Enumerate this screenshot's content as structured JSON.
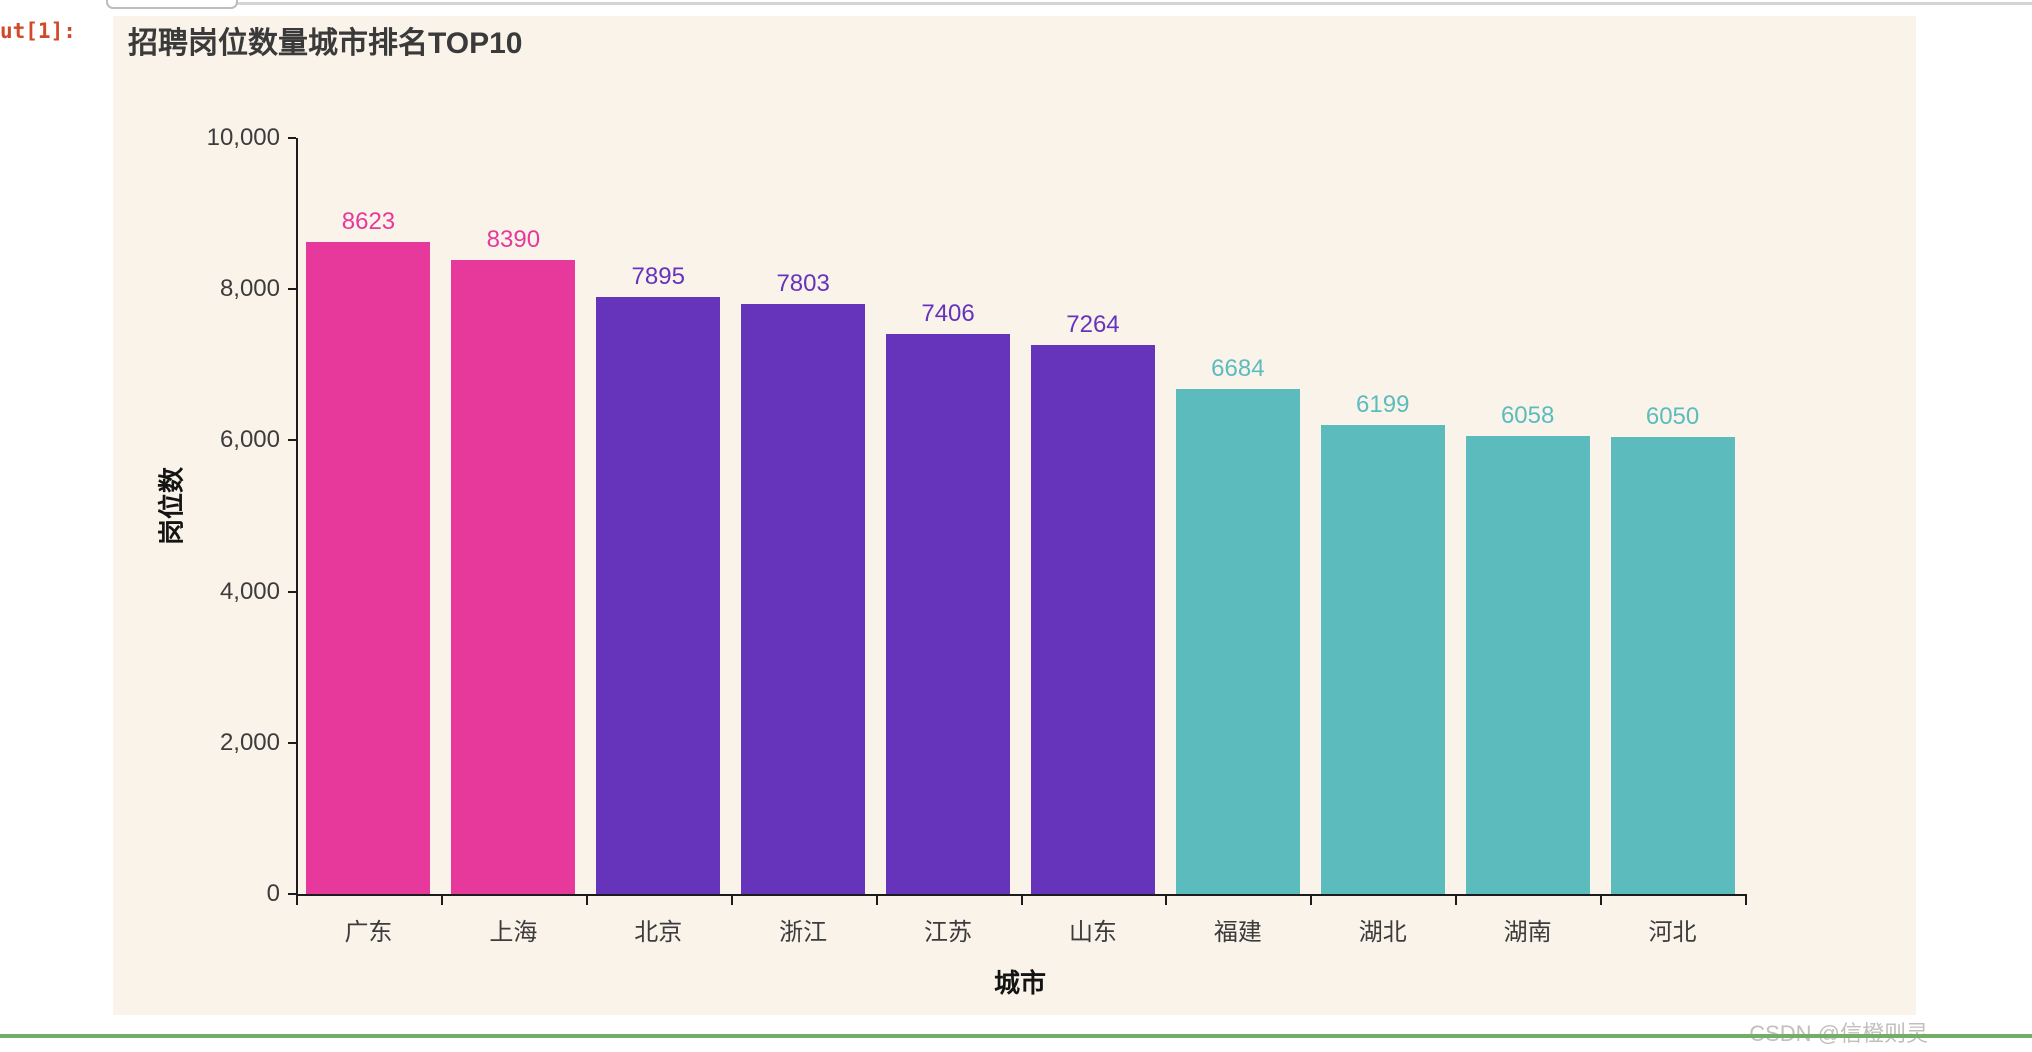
{
  "notebook": {
    "out_prompt": "ut[1]:"
  },
  "watermark": "CSDN @信橙则灵",
  "colors": {
    "panel_background": "#faf3ea",
    "axis": "#1c1c1c",
    "out_prompt": "#d04a2a",
    "divider_green": "#74ad66",
    "watermark_text": "#c0bfbd",
    "title_text": "#3a3a3a"
  },
  "chart_data": {
    "type": "bar",
    "title": "招聘岗位数量城市排名TOP10",
    "xlabel": "城市",
    "ylabel": "岗位数",
    "categories": [
      "广东",
      "上海",
      "北京",
      "浙江",
      "江苏",
      "山东",
      "福建",
      "湖北",
      "湖南",
      "河北"
    ],
    "values": [
      8623,
      8390,
      7895,
      7803,
      7406,
      7264,
      6684,
      6199,
      6058,
      6050
    ],
    "value_labels": [
      "8623",
      "8390",
      "7895",
      "7803",
      "7406",
      "7264",
      "6684",
      "6199",
      "6058",
      "6050"
    ],
    "bar_color_keys": [
      "pink",
      "pink",
      "purple",
      "purple",
      "purple",
      "purple",
      "teal",
      "teal",
      "teal",
      "teal"
    ],
    "palette": {
      "pink": "#e6399b",
      "purple": "#6633bb",
      "teal": "#5cbcbd"
    },
    "ylim": [
      0,
      10000
    ],
    "yticks": [
      0,
      2000,
      4000,
      6000,
      8000,
      10000
    ],
    "ytick_labels": [
      "0",
      "2,000",
      "4,000",
      "6,000",
      "8,000",
      "10,000"
    ],
    "grid": false,
    "legend": "none",
    "value_labels_shown": true,
    "plot_background": "#faf3ea"
  }
}
